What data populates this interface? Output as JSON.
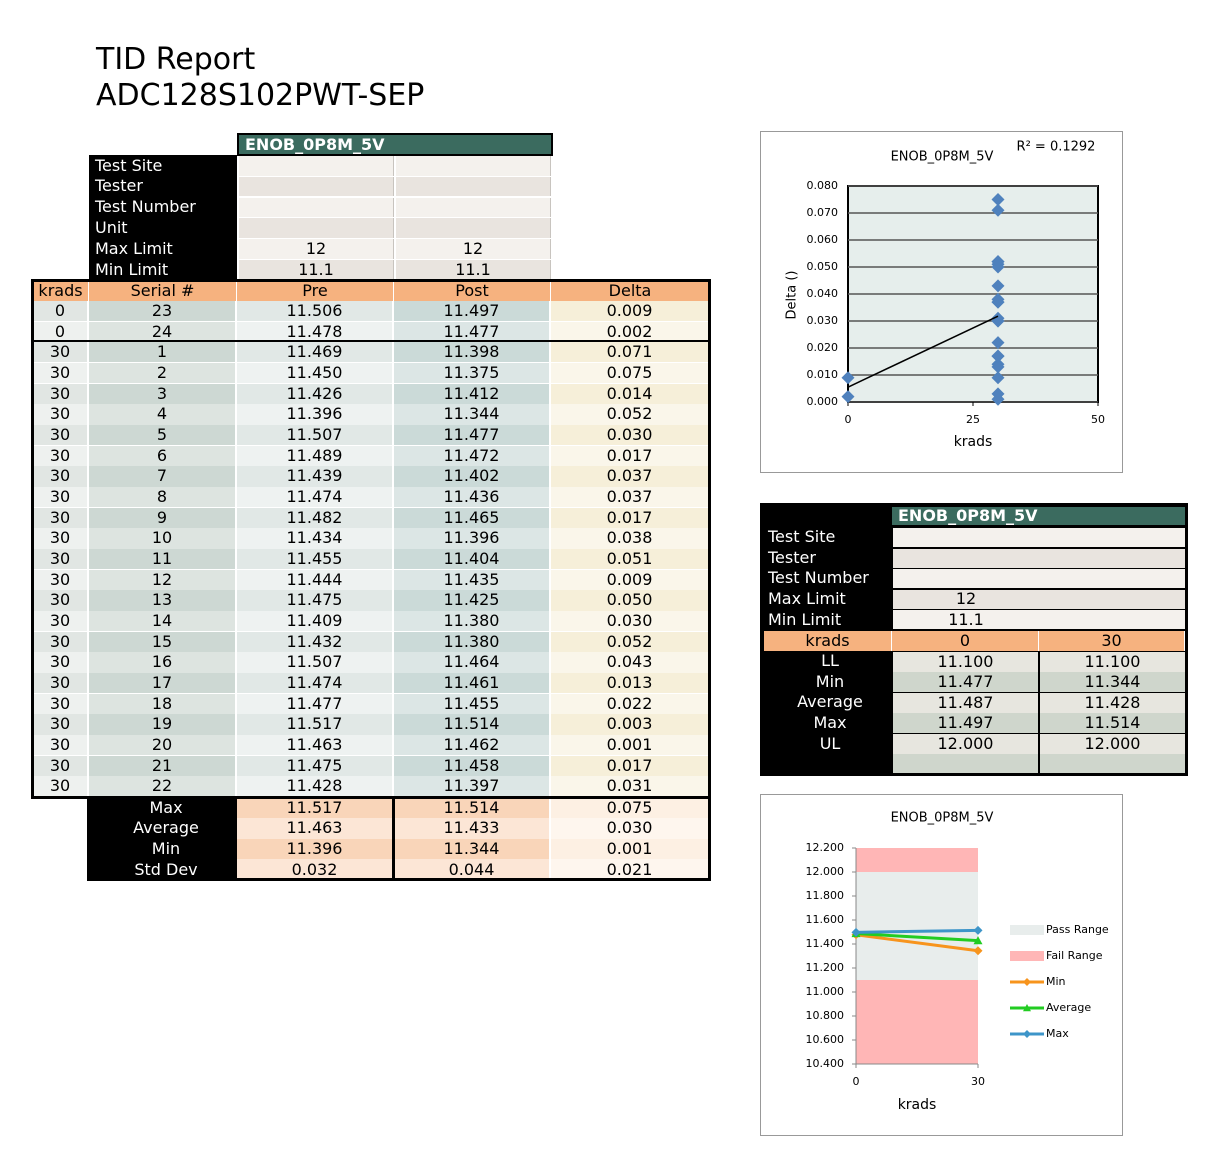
{
  "header": {
    "title": "TID Report",
    "subtitle": "ADC128S102PWT-SEP"
  },
  "main_table": {
    "name": "ENOB_0P8M_5V",
    "info": [
      {
        "label": "Test Site"
      },
      {
        "label": "Tester"
      },
      {
        "label": "Test Number"
      },
      {
        "label": "Unit"
      },
      {
        "label": "Max Limit",
        "values": [
          12,
          12
        ]
      },
      {
        "label": "Min Limit",
        "values": [
          11.1,
          11.1
        ]
      }
    ],
    "columns": [
      "krads",
      "Serial #",
      "Pre",
      "Post",
      "Delta"
    ],
    "rows": [
      [
        0,
        23,
        "11.506",
        "11.497",
        "0.009"
      ],
      [
        0,
        24,
        "11.478",
        "11.477",
        "0.002"
      ],
      [
        30,
        1,
        "11.469",
        "11.398",
        "0.071"
      ],
      [
        30,
        2,
        "11.450",
        "11.375",
        "0.075"
      ],
      [
        30,
        3,
        "11.426",
        "11.412",
        "0.014"
      ],
      [
        30,
        4,
        "11.396",
        "11.344",
        "0.052"
      ],
      [
        30,
        5,
        "11.507",
        "11.477",
        "0.030"
      ],
      [
        30,
        6,
        "11.489",
        "11.472",
        "0.017"
      ],
      [
        30,
        7,
        "11.439",
        "11.402",
        "0.037"
      ],
      [
        30,
        8,
        "11.474",
        "11.436",
        "0.037"
      ],
      [
        30,
        9,
        "11.482",
        "11.465",
        "0.017"
      ],
      [
        30,
        10,
        "11.434",
        "11.396",
        "0.038"
      ],
      [
        30,
        11,
        "11.455",
        "11.404",
        "0.051"
      ],
      [
        30,
        12,
        "11.444",
        "11.435",
        "0.009"
      ],
      [
        30,
        13,
        "11.475",
        "11.425",
        "0.050"
      ],
      [
        30,
        14,
        "11.409",
        "11.380",
        "0.030"
      ],
      [
        30,
        15,
        "11.432",
        "11.380",
        "0.052"
      ],
      [
        30,
        16,
        "11.507",
        "11.464",
        "0.043"
      ],
      [
        30,
        17,
        "11.474",
        "11.461",
        "0.013"
      ],
      [
        30,
        18,
        "11.477",
        "11.455",
        "0.022"
      ],
      [
        30,
        19,
        "11.517",
        "11.514",
        "0.003"
      ],
      [
        30,
        20,
        "11.463",
        "11.462",
        "0.001"
      ],
      [
        30,
        21,
        "11.475",
        "11.458",
        "0.017"
      ],
      [
        30,
        22,
        "11.428",
        "11.397",
        "0.031"
      ]
    ],
    "summary": [
      {
        "label": "Max",
        "values": [
          "11.517",
          "11.514",
          "0.075"
        ]
      },
      {
        "label": "Average",
        "values": [
          "11.463",
          "11.433",
          "0.030"
        ]
      },
      {
        "label": "Min",
        "values": [
          "11.396",
          "11.344",
          "0.001"
        ]
      },
      {
        "label": "Std Dev",
        "values": [
          "0.032",
          "0.044",
          "0.021"
        ]
      }
    ]
  },
  "summary_table": {
    "name": "ENOB_0P8M_5V",
    "info": [
      {
        "label": "Test Site"
      },
      {
        "label": "Tester"
      },
      {
        "label": "Test Number"
      },
      {
        "label": "Max Limit",
        "value": 12
      },
      {
        "label": "Min Limit",
        "value": 11.1
      }
    ],
    "header": [
      "krads",
      0,
      30
    ],
    "rows": [
      {
        "label": "LL",
        "values": [
          "11.100",
          "11.100"
        ]
      },
      {
        "label": "Min",
        "values": [
          "11.477",
          "11.344"
        ]
      },
      {
        "label": "Average",
        "values": [
          "11.487",
          "11.428"
        ]
      },
      {
        "label": "Max",
        "values": [
          "11.497",
          "11.514"
        ]
      },
      {
        "label": "UL",
        "values": [
          "12.000",
          "12.000"
        ]
      }
    ]
  },
  "chart_data": [
    {
      "type": "scatter",
      "title": "ENOB_0P8M_5V",
      "annotation": "R² = 0.1292",
      "x_label": "krads",
      "y_label": "Delta ()",
      "x": [
        0,
        0,
        30,
        30,
        30,
        30,
        30,
        30,
        30,
        30,
        30,
        30,
        30,
        30,
        30,
        30,
        30,
        30,
        30,
        30,
        30,
        30,
        30,
        30
      ],
      "values": [
        0.009,
        0.002,
        0.071,
        0.075,
        0.014,
        0.052,
        0.03,
        0.017,
        0.037,
        0.037,
        0.017,
        0.038,
        0.051,
        0.009,
        0.05,
        0.03,
        0.052,
        0.043,
        0.013,
        0.022,
        0.003,
        0.001,
        0.017,
        0.031
      ],
      "color": "#4f81bd",
      "trendline": {
        "x": [
          0,
          30
        ],
        "values": [
          0.0055,
          0.0318
        ],
        "color": "#000000"
      },
      "xlim": [
        0,
        50
      ],
      "xticks": [
        0,
        25,
        50
      ],
      "ylim": [
        0,
        0.08
      ],
      "yticks": [
        {
          "value": 0,
          "label": "0.000"
        },
        {
          "value": 0.01,
          "label": "0.010"
        },
        {
          "value": 0.02,
          "label": "0.020"
        },
        {
          "value": 0.03,
          "label": "0.030"
        },
        {
          "value": 0.04,
          "label": "0.040"
        },
        {
          "value": 0.05,
          "label": "0.050"
        },
        {
          "value": 0.06,
          "label": "0.060"
        },
        {
          "value": 0.07,
          "label": "0.070"
        },
        {
          "value": 0.08,
          "label": "0.080"
        }
      ],
      "grid": true
    },
    {
      "type": "line",
      "title": "ENOB_0P8M_5V",
      "x_label": "krads",
      "x": [
        0,
        30
      ],
      "series": [
        {
          "name": "Min",
          "color": "#f7941d",
          "marker": "diamond",
          "values": [
            11.477,
            11.344
          ]
        },
        {
          "name": "Average",
          "color": "#22cc22",
          "marker": "triangle",
          "values": [
            11.487,
            11.428
          ]
        },
        {
          "name": "Max",
          "color": "#3d95c9",
          "marker": "diamond",
          "values": [
            11.497,
            11.514
          ]
        }
      ],
      "pass_range": {
        "name": "Pass Range",
        "color": "#e8edec",
        "values": [
          11.1,
          12
        ]
      },
      "fail_range": {
        "name": "Fail Range",
        "color": "#ffb6b6"
      },
      "xlim": [
        0,
        30
      ],
      "xticks": [
        0,
        30
      ],
      "ylim": [
        10.4,
        12.2
      ],
      "yticks": [
        {
          "value": 10.4,
          "label": "10.400"
        },
        {
          "value": 10.6,
          "label": "10.600"
        },
        {
          "value": 10.8,
          "label": "10.800"
        },
        {
          "value": 11,
          "label": "11.000"
        },
        {
          "value": 11.2,
          "label": "11.200"
        },
        {
          "value": 11.4,
          "label": "11.400"
        },
        {
          "value": 11.6,
          "label": "11.600"
        },
        {
          "value": 11.8,
          "label": "11.800"
        },
        {
          "value": 12,
          "label": "12.000"
        },
        {
          "value": 12.2,
          "label": "12.200"
        }
      ]
    }
  ]
}
